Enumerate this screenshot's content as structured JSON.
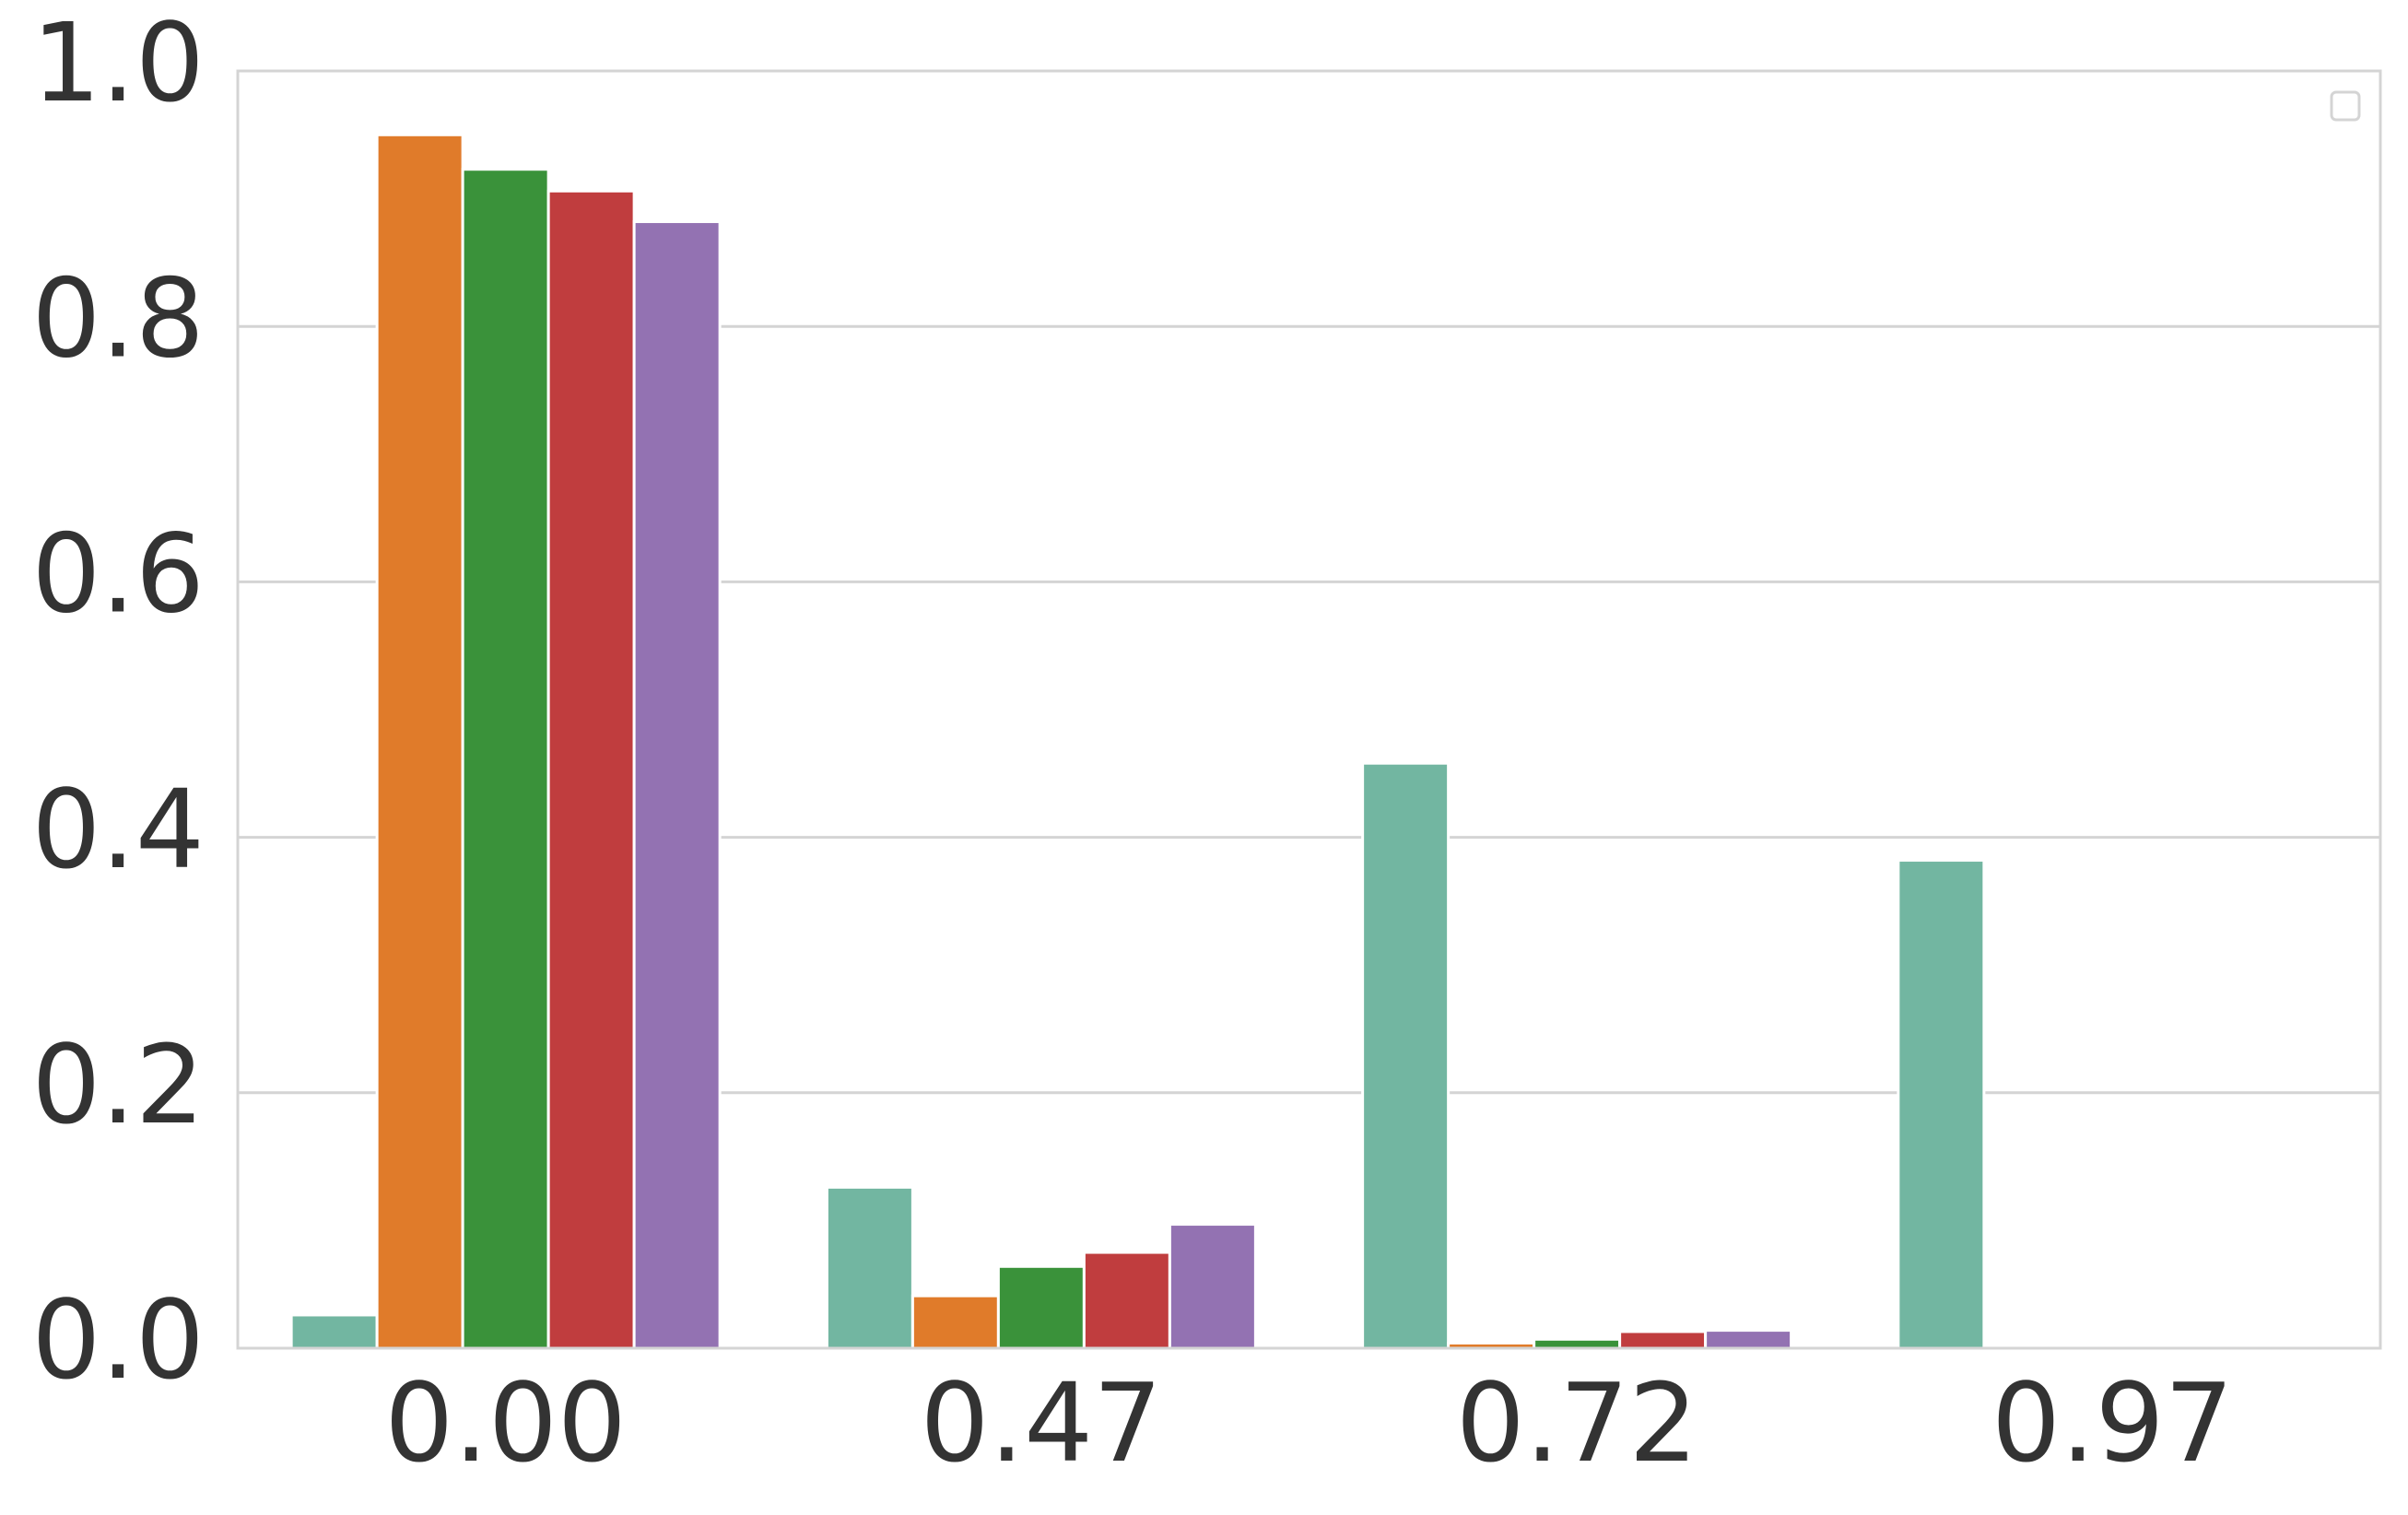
{
  "chart_data": {
    "type": "bar",
    "categories": [
      "0.00",
      "0.47",
      "0.72",
      "0.97"
    ],
    "series": [
      {
        "color": "#72b6a1",
        "values": [
          0.026,
          0.126,
          0.458,
          0.382
        ]
      },
      {
        "color": "#e07b2a",
        "values": [
          0.95,
          0.041,
          0.004,
          0
        ]
      },
      {
        "color": "#3a923a",
        "values": [
          0.923,
          0.064,
          0.007,
          0
        ]
      },
      {
        "color": "#c03d3e",
        "values": [
          0.906,
          0.075,
          0.013,
          0
        ]
      },
      {
        "color": "#9372b2",
        "values": [
          0.882,
          0.097,
          0.014,
          0
        ]
      }
    ],
    "ylim": [
      0,
      1.0
    ],
    "yticks": [
      {
        "value": 0,
        "label": "0.0"
      },
      0.2,
      0.4,
      0.6,
      0.8,
      {
        "value": 1.0,
        "label": "1.0"
      }
    ],
    "grid": true
  }
}
